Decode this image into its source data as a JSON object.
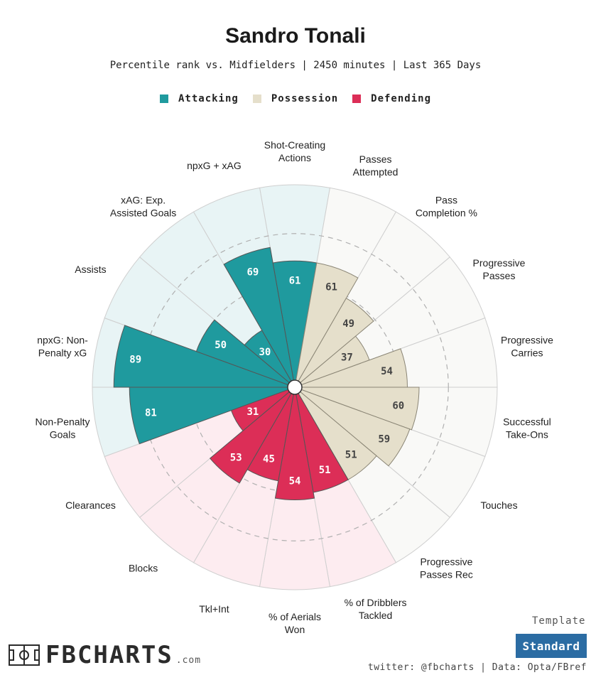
{
  "header": {
    "title": "Sandro Tonali",
    "subtitle": "Percentile rank vs. Midfielders | 2450 minutes | Last 365 Days"
  },
  "legend": [
    {
      "label": "Attacking",
      "color": "#1f9a9e"
    },
    {
      "label": "Possession",
      "color": "#e5dfcb"
    },
    {
      "label": "Defending",
      "color": "#dc2e57"
    }
  ],
  "template": {
    "label": "Template",
    "button": "Standard"
  },
  "footer": {
    "logo": "FBCHARTS",
    "logo_suffix": ".com",
    "credit": "twitter: @fbcharts | Data: Opta/FBref"
  },
  "chart_data": {
    "type": "polar-bar",
    "range": [
      0,
      100
    ],
    "rings": [
      25,
      50,
      75
    ],
    "colors": {
      "Attacking": {
        "fill": "#1f9a9e",
        "background": "#e8f4f5"
      },
      "Possession": {
        "fill": "#e5dfcb",
        "background": "#f9f9f7"
      },
      "Defending": {
        "fill": "#dc2e57",
        "background": "#fdecf0"
      }
    },
    "categories": [
      {
        "label": "Shot-Creating\nActions",
        "value": 61,
        "group": "Attacking"
      },
      {
        "label": "Passes\nAttempted",
        "value": 61,
        "group": "Possession"
      },
      {
        "label": "Pass\nCompletion %",
        "value": 49,
        "group": "Possession"
      },
      {
        "label": "Progressive\nPasses",
        "value": 37,
        "group": "Possession"
      },
      {
        "label": "Progressive\nCarries",
        "value": 54,
        "group": "Possession"
      },
      {
        "label": "Successful\nTake-Ons",
        "value": 60,
        "group": "Possession"
      },
      {
        "label": "Touches",
        "value": 59,
        "group": "Possession"
      },
      {
        "label": "Progressive\nPasses Rec",
        "value": 51,
        "group": "Possession"
      },
      {
        "label": "% of Dribblers\nTackled",
        "value": 51,
        "group": "Defending"
      },
      {
        "label": "% of Aerials\nWon",
        "value": 54,
        "group": "Defending"
      },
      {
        "label": "Tkl+Int",
        "value": 45,
        "group": "Defending"
      },
      {
        "label": "Blocks",
        "value": 53,
        "group": "Defending"
      },
      {
        "label": "Clearances",
        "value": 31,
        "group": "Defending"
      },
      {
        "label": "Non-Penalty\nGoals",
        "value": 81,
        "group": "Attacking"
      },
      {
        "label": "npxG: Non-\nPenalty xG",
        "value": 89,
        "group": "Attacking"
      },
      {
        "label": "Assists",
        "value": 50,
        "group": "Attacking"
      },
      {
        "label": "xAG: Exp.\nAssisted Goals",
        "value": 30,
        "group": "Attacking"
      },
      {
        "label": "npxG + xAG",
        "value": 69,
        "group": "Attacking"
      }
    ]
  }
}
